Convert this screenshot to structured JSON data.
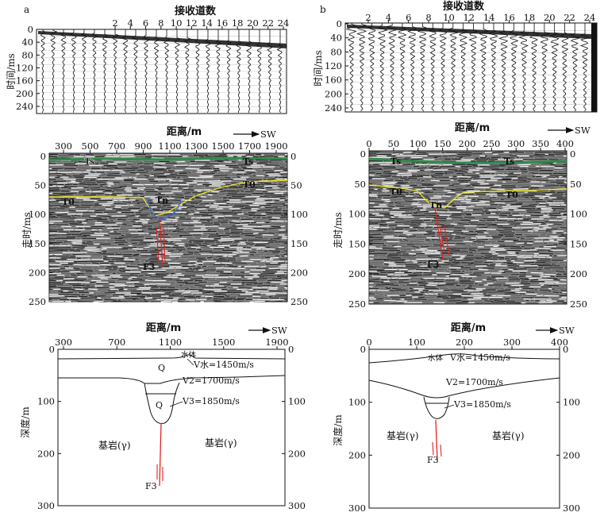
{
  "panel_a": {
    "letter": "a",
    "traces": {
      "title": "接收道数",
      "ylabel": "时间/ms",
      "x_ticks": [
        "2",
        "4",
        "6",
        "8",
        "10",
        "12",
        "14",
        "16",
        "18",
        "20",
        "22",
        "24"
      ],
      "y_ticks": [
        "0",
        "40",
        "80",
        "120",
        "160",
        "200",
        "240"
      ]
    },
    "profile": {
      "title": "距离/m",
      "direction": "SW",
      "ylabel": "走时/ms",
      "x_ticks": [
        "300",
        "500",
        "700",
        "900",
        "1100",
        "1300",
        "1500",
        "1700",
        "1900"
      ],
      "y_ticks": [
        "0",
        "50",
        "100",
        "150",
        "200",
        "250"
      ],
      "labels": {
        "ts_left": "Ts",
        "ts_right": "Ts",
        "t0_left": "T0",
        "t0_right": "T0",
        "tn": "Tn",
        "fault": "F3"
      }
    },
    "model": {
      "title": "距离/m",
      "direction": "SW",
      "ylabel": "深度/m",
      "x_ticks": [
        "300",
        "700",
        "1100",
        "1500",
        "1900"
      ],
      "y_ticks": [
        "0",
        "100",
        "200",
        "300"
      ],
      "water": "水体",
      "v_water": "V水=1450m/s",
      "q_upper": "Q",
      "v2": "V2=1700m/s",
      "q_lower": "Q",
      "v3": "V3=1850m/s",
      "bedrock_left": "基岩(γ)",
      "bedrock_right": "基岩(γ)",
      "fault": "F3"
    }
  },
  "panel_b": {
    "letter": "b",
    "traces": {
      "title": "接收道数",
      "ylabel": "时间/ms",
      "x_ticks": [
        "2",
        "4",
        "6",
        "8",
        "10",
        "12",
        "14",
        "16",
        "18",
        "20",
        "22",
        "24"
      ],
      "y_ticks": [
        "0",
        "40",
        "80",
        "120",
        "160",
        "200",
        "240"
      ]
    },
    "profile": {
      "title": "距离/m",
      "direction": "SW",
      "ylabel": "走时/ms",
      "x_ticks": [
        "0",
        "50",
        "100",
        "150",
        "200",
        "250",
        "300",
        "350",
        "400"
      ],
      "y_ticks": [
        "0",
        "50",
        "100",
        "150",
        "200",
        "250"
      ],
      "labels": {
        "ts_left": "Ts",
        "ts_right": "Ts",
        "t0_left": "T0",
        "t0_right": "T0",
        "tn": "Tn",
        "fault": "F3"
      }
    },
    "model": {
      "title": "距离/m",
      "direction": "SW",
      "ylabel": "深度/m",
      "x_ticks": [
        "0",
        "100",
        "200",
        "300",
        "400"
      ],
      "y_ticks": [
        "0",
        "100",
        "200",
        "300"
      ],
      "water": "水体",
      "v_water": "V水=1450m/s",
      "v2": "V2=1700m/s",
      "v3": "V3=1850m/s",
      "bedrock_left": "基岩(γ)",
      "bedrock_right": "基岩(γ)",
      "fault": "F3"
    }
  }
}
